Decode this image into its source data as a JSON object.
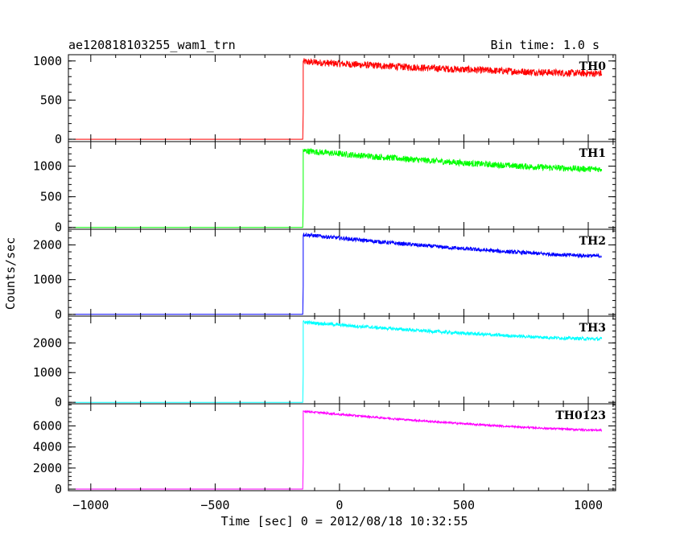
{
  "chart_data": {
    "type": "line",
    "title": "ae120818103255_wam1_trn",
    "bin_time_label": "Bin time: 1.0 s",
    "xlabel": "Time [sec] 0 = 2012/08/18 10:32:55",
    "ylabel": "Counts/sec",
    "xlim": [
      -1090,
      1110
    ],
    "x_ticks": [
      -1000,
      -500,
      0,
      500,
      1000
    ],
    "x_tick_labels": [
      "−1000",
      "−500",
      "0",
      "500",
      "1000"
    ],
    "onset_x": -146,
    "x_end": 1055,
    "panels": [
      {
        "name": "TH0",
        "color": "#ff0000",
        "ylim": [
          -30,
          1080
        ],
        "y_ticks": [
          0,
          500,
          1000
        ],
        "y_tick_labels": [
          "0",
          "500",
          "1000"
        ],
        "pre_level": 0,
        "peak": 990,
        "end": 840,
        "noise": 45
      },
      {
        "name": "TH1",
        "color": "#00ff00",
        "ylim": [
          -30,
          1400
        ],
        "y_ticks": [
          0,
          500,
          1000
        ],
        "y_tick_labels": [
          "0",
          "500",
          "1000"
        ],
        "pre_level": 0,
        "peak": 1250,
        "end": 950,
        "noise": 50
      },
      {
        "name": "TH2",
        "color": "#0000ff",
        "ylim": [
          -50,
          2450
        ],
        "y_ticks": [
          0,
          1000,
          2000
        ],
        "y_tick_labels": [
          "0",
          "1000",
          "2000"
        ],
        "pre_level": 0,
        "peak": 2300,
        "end": 1680,
        "noise": 55
      },
      {
        "name": "TH3",
        "color": "#00ffff",
        "ylim": [
          -50,
          2900
        ],
        "y_ticks": [
          0,
          1000,
          2000
        ],
        "y_tick_labels": [
          "0",
          "1000",
          "2000"
        ],
        "pre_level": 0,
        "peak": 2700,
        "end": 2130,
        "noise": 55
      },
      {
        "name": "TH0123",
        "color": "#ff00ff",
        "ylim": [
          -150,
          8100
        ],
        "y_ticks": [
          0,
          2000,
          4000,
          6000
        ],
        "y_tick_labels": [
          "0",
          "2000",
          "4000",
          "6000"
        ],
        "pre_level": 0,
        "peak": 7400,
        "end": 5600,
        "noise": 90
      }
    ]
  }
}
